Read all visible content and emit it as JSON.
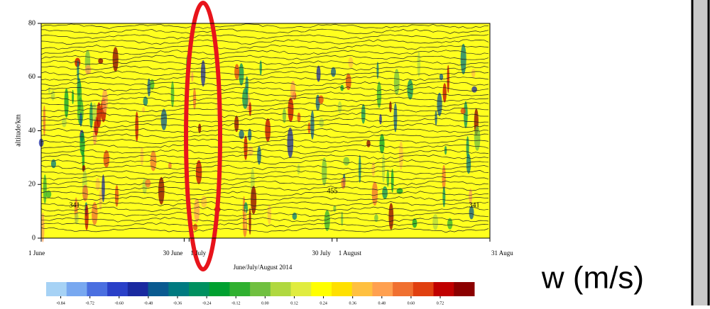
{
  "chart_data": {
    "type": "contour",
    "ylabel": "altitude/km",
    "xlabel": "June/July/August 2014",
    "ylim": [
      0,
      80
    ],
    "yticks": [
      0,
      20,
      40,
      60,
      80
    ],
    "xlim": [
      0,
      91
    ],
    "xticks": [
      {
        "value": 0,
        "label": "1 June"
      },
      {
        "value": 29,
        "label": "30 June"
      },
      {
        "value": 30,
        "label": "1 July"
      },
      {
        "value": 59,
        "label": "30 July"
      },
      {
        "value": 60,
        "label": "1 August"
      },
      {
        "value": 91,
        "label": "31 Augu"
      }
    ],
    "contour_labels": [
      "341",
      "455",
      "341"
    ],
    "colorbar": {
      "title": "w (m/s)",
      "clim": [
        -0.9,
        0.86
      ],
      "colors": [
        "#a6d2f5",
        "#78a8f0",
        "#4a6fe0",
        "#2a40c8",
        "#1a2aa0",
        "#0a5a90",
        "#007a80",
        "#009060",
        "#00a030",
        "#30b030",
        "#70c040",
        "#b0d840",
        "#e0ec40",
        "#ffff00",
        "#ffe000",
        "#ffc040",
        "#ffa050",
        "#f07030",
        "#e04010",
        "#c00000",
        "#8b0000"
      ],
      "ticks": [
        -0.84,
        -0.72,
        {
          "value": -0.6,
          "label": "-0.60"
        },
        -0.48,
        -0.36,
        -0.24,
        -0.12,
        {
          "value": 0,
          "label": "0.00"
        },
        0.12,
        0.24,
        0.36,
        0.48,
        {
          "value": 0.6,
          "label": "0.60"
        },
        0.72
      ]
    }
  }
}
